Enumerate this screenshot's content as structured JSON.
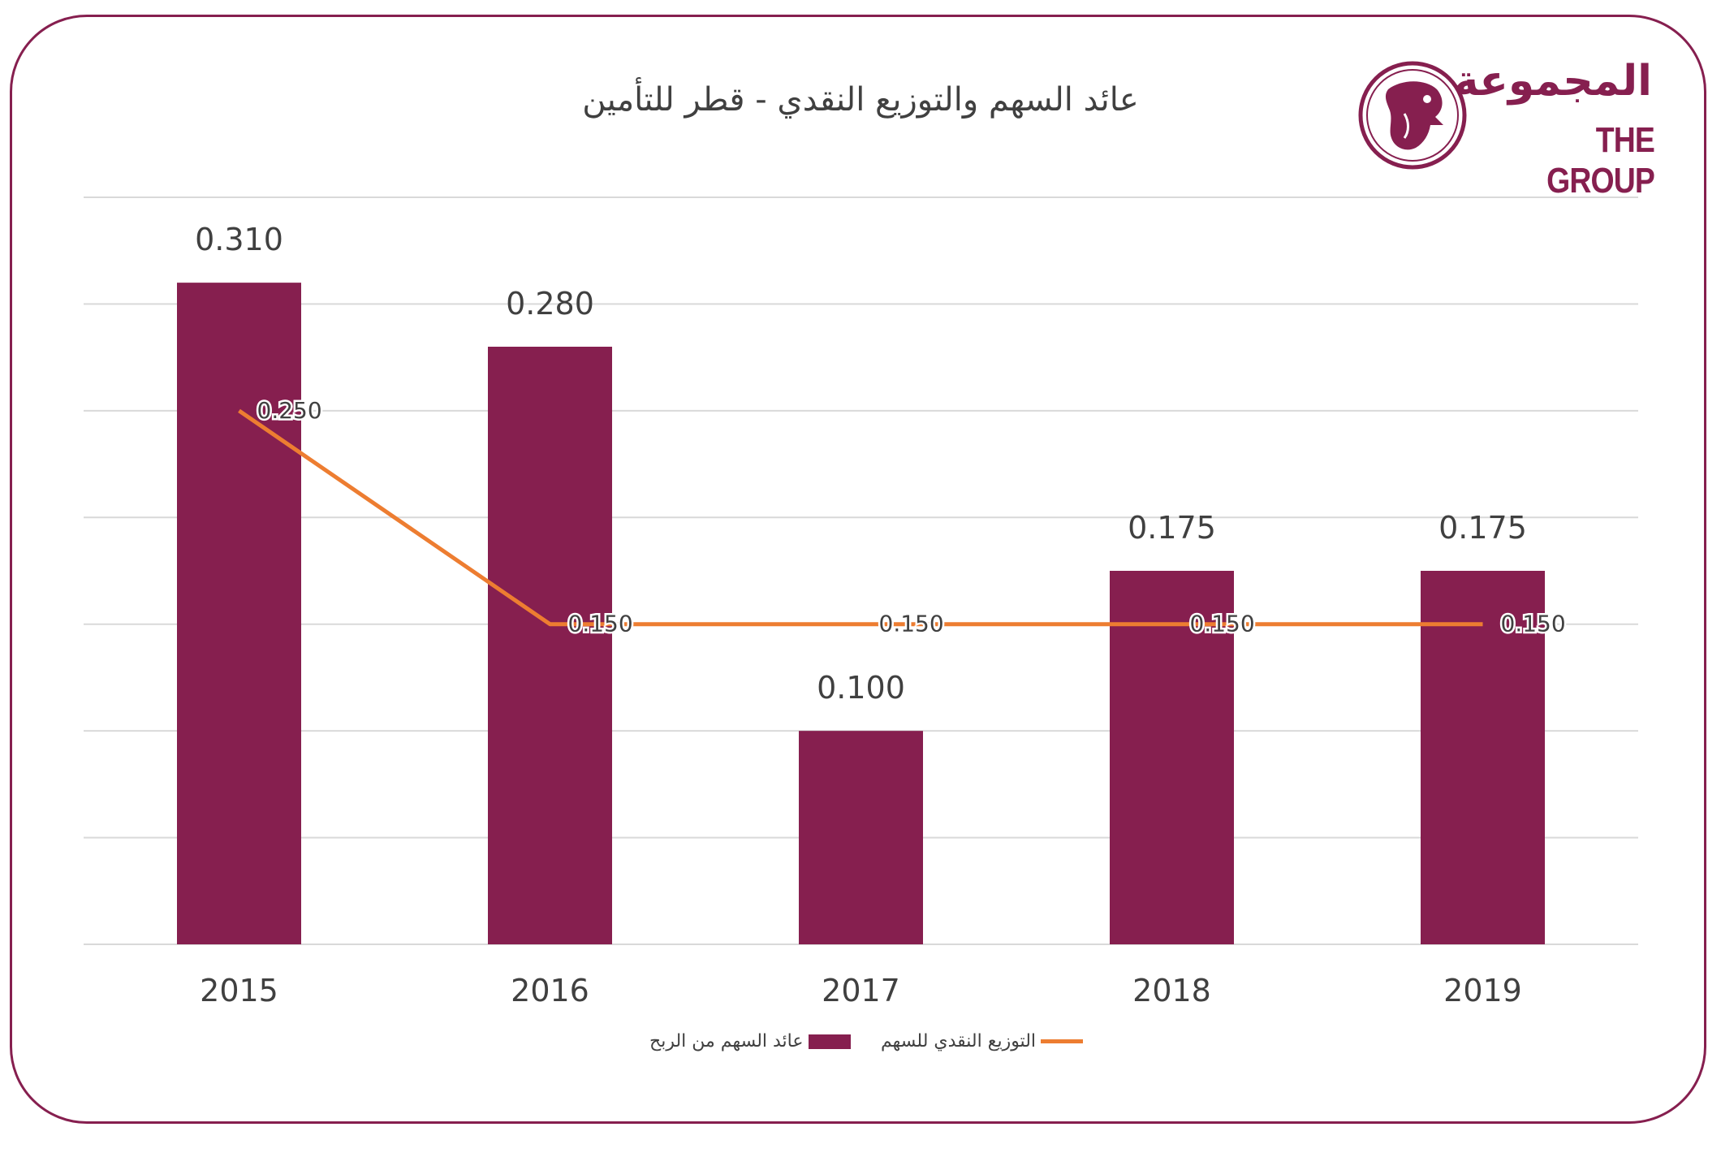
{
  "chart_data": {
    "type": "bar",
    "title": "عائد السهم والتوزيع النقدي - قطر للتأمين",
    "categories": [
      "2015",
      "2016",
      "2017",
      "2018",
      "2019"
    ],
    "series": [
      {
        "name": "عائد السهم من الربح",
        "type": "bar",
        "color": "#861F4F",
        "values": [
          0.31,
          0.28,
          0.1,
          0.175,
          0.175
        ],
        "labels": [
          "0.310",
          "0.280",
          "0.100",
          "0.175",
          "0.175"
        ]
      },
      {
        "name": "التوزيع النقدي للسهم",
        "type": "line",
        "color": "#ED7D31",
        "values": [
          0.25,
          0.15,
          0.15,
          0.15,
          0.15
        ],
        "labels": [
          "0.250",
          "0.150",
          "0.150",
          "0.150",
          "0.150"
        ]
      }
    ],
    "ylim": [
      0,
      0.35
    ],
    "grid": true,
    "legend_position": "bottom"
  },
  "logo": {
    "arabic": "المجموعة",
    "english": "THE GROUP"
  }
}
